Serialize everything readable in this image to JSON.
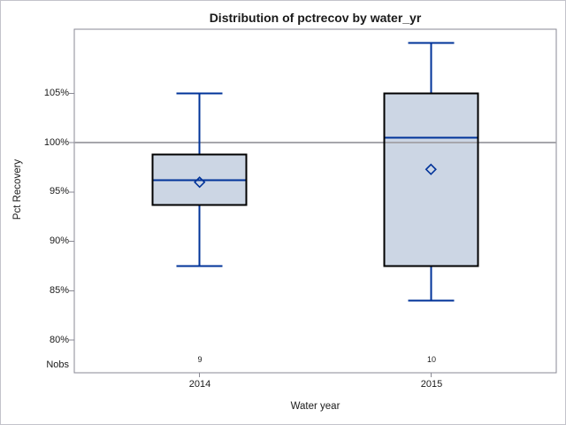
{
  "figure": {
    "title": "Distribution of pctrecov by water_yr"
  },
  "chart_data": {
    "type": "box",
    "title": "Distribution of pctrecov by water_yr",
    "xlabel": "Water year",
    "ylabel": "Pct Recovery",
    "categories": [
      "2014",
      "2015"
    ],
    "nobs_label": "Nobs",
    "nobs": [
      "9",
      "10"
    ],
    "ytick_labels": [
      "105%",
      "100%",
      "95%",
      "90%",
      "85%",
      "80%"
    ],
    "ytick_values": [
      105,
      100,
      95,
      90,
      85,
      80
    ],
    "ylim": [
      76.7,
      111.5
    ],
    "refline": 100,
    "legend": "none",
    "grid": "off",
    "series": [
      {
        "category": "2014",
        "n": 9,
        "whisker_low": 87.5,
        "q1": 93.7,
        "median": 96.2,
        "q3": 98.8,
        "whisker_high": 105.0,
        "mean": 96.0
      },
      {
        "category": "2015",
        "n": 10,
        "whisker_low": 84.0,
        "q1": 87.5,
        "median": 100.5,
        "q3": 105.0,
        "whisker_high": 110.1,
        "mean": 97.3
      }
    ],
    "colors": {
      "box_fill": "#ccd6e4",
      "box_border": "#000000",
      "line": "#003399",
      "refline": "#a6a6ac",
      "frame": "#8a8a94",
      "text": "#1a1a1a"
    }
  }
}
